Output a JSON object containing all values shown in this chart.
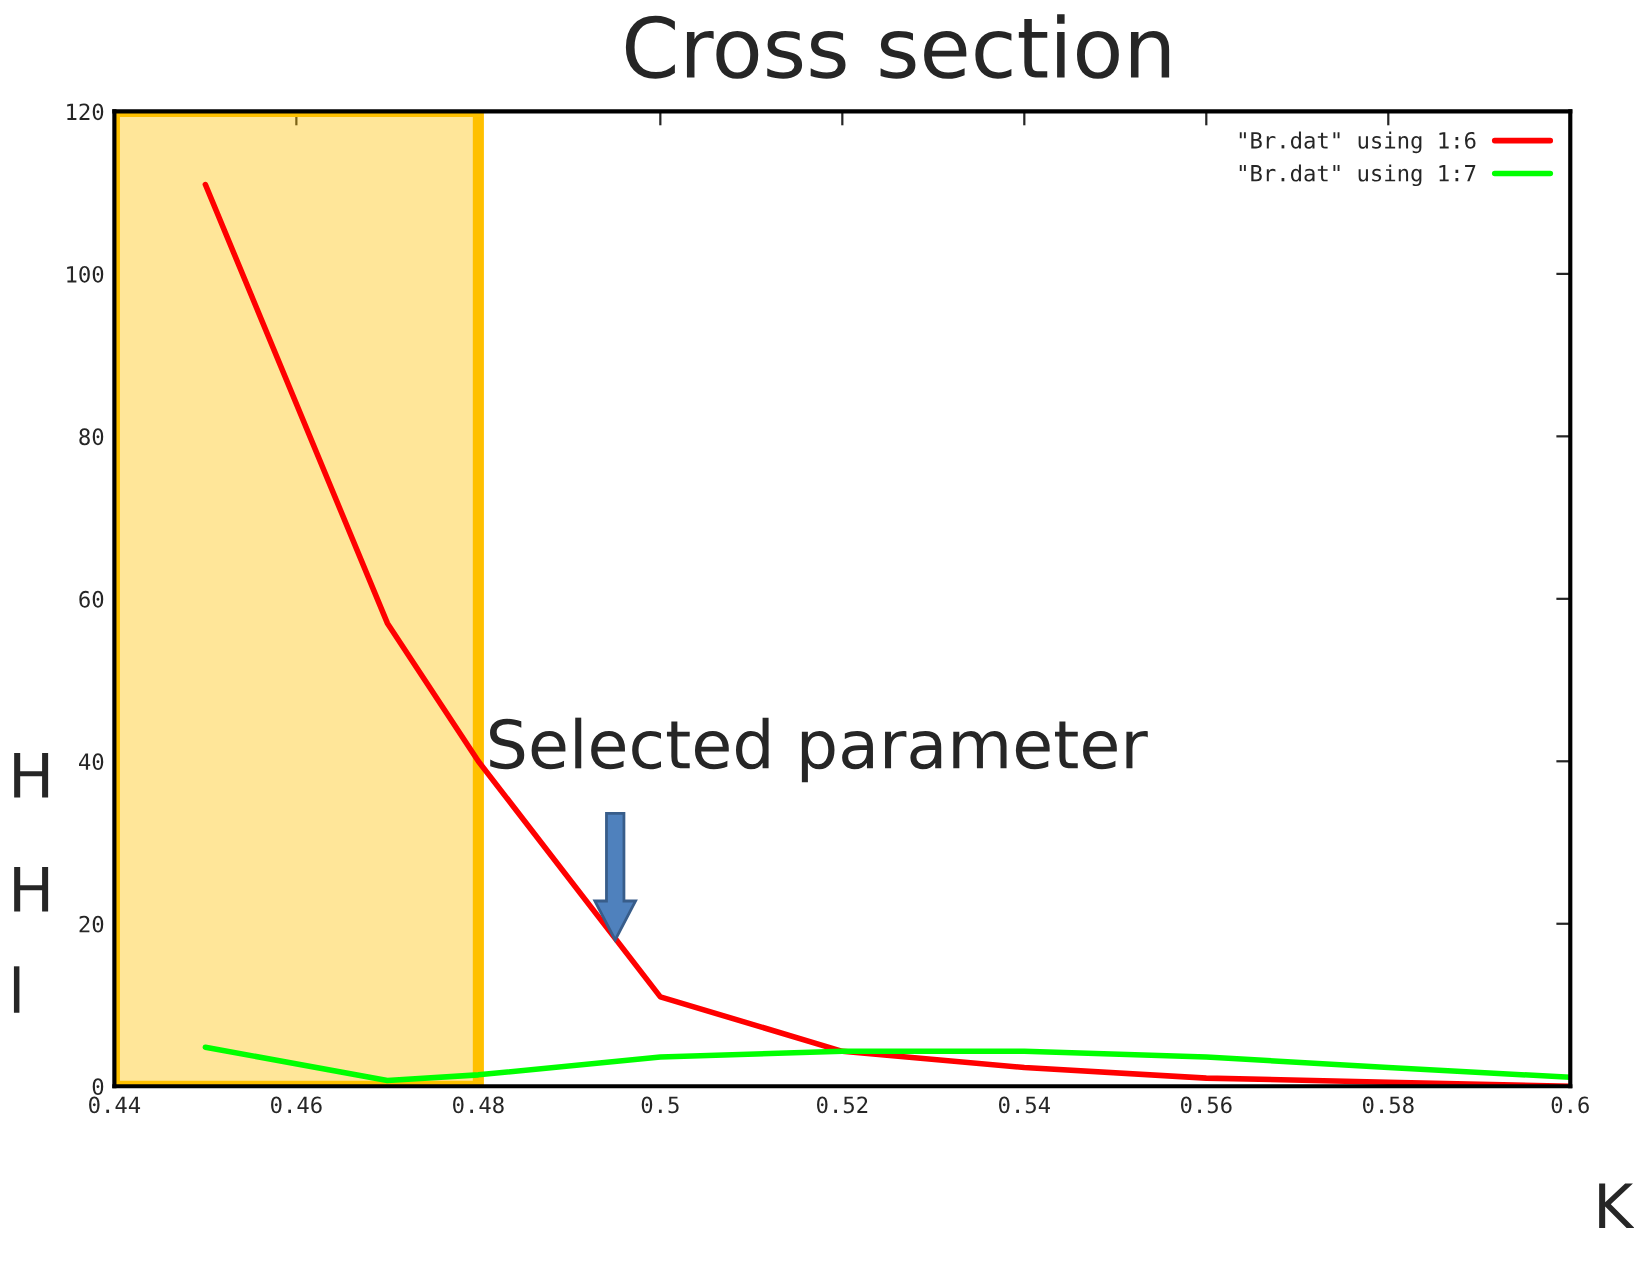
{
  "chart_data": {
    "type": "line",
    "title": "Cross section",
    "x": [
      0.45,
      0.47,
      0.48,
      0.5,
      0.52,
      0.54,
      0.56,
      0.58,
      0.6
    ],
    "series": [
      {
        "name": "\"Br.dat\" using 1:6",
        "color": "#ff0000",
        "values": [
          111,
          57,
          40,
          11,
          4.3,
          2.3,
          1,
          0.5,
          0
        ]
      },
      {
        "name": "\"Br.dat\" using 1:7",
        "color": "#00ff00",
        "values": [
          4.8,
          0.7,
          1.4,
          3.6,
          4.3,
          4.3,
          3.6,
          2.3,
          1.1
        ]
      }
    ],
    "xlim": [
      0.44,
      0.6
    ],
    "xticks": [
      {
        "value": 0.44,
        "label": "0.44"
      },
      {
        "value": 0.46,
        "label": "0.46"
      },
      {
        "value": 0.48,
        "label": "0.48"
      },
      {
        "value": 0.5,
        "label": "0.5"
      },
      {
        "value": 0.52,
        "label": "0.52"
      },
      {
        "value": 0.54,
        "label": "0.54"
      },
      {
        "value": 0.56,
        "label": "0.56"
      },
      {
        "value": 0.58,
        "label": "0.58"
      },
      {
        "value": 0.6,
        "label": "0.6"
      }
    ],
    "ylim": [
      0,
      120
    ],
    "yticks": [
      0,
      20,
      40,
      60,
      80,
      100,
      120
    ],
    "bands": [
      {
        "axis": "x",
        "from": 0.44,
        "to": 0.48,
        "color": "#ffc000"
      }
    ],
    "annotations": [
      "Selected parameter",
      "H",
      "H",
      "l",
      "K"
    ],
    "legend": "top right",
    "grid": false,
    "line_style": "solid",
    "marker": "none"
  }
}
